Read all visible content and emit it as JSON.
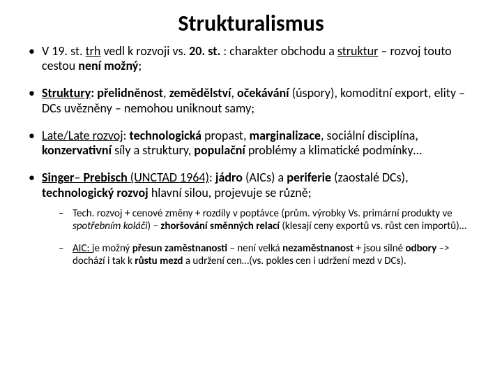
{
  "title": "Strukturalismus",
  "bullets": [
    {
      "pre": "V 19. st. ",
      "trh": "trh",
      "mid1": " vedl k rozvoji vs. ",
      "st20": "20. st. ",
      "mid2": ": charakter obchodu a ",
      "struk": "struktur",
      "dash": " – rozvoj touto cestou ",
      "neni": "není možný",
      "end": ";"
    },
    {
      "s1": "Struktury",
      "s2": ": přelidněnost",
      "s3": ", ",
      "s4": "zemědělství",
      "s5": ", ",
      "s6": "očekávání ",
      "s7": "(úspory), komoditní export,  elity – DCs uvězněny – nemohou uniknout samy;"
    },
    {
      "l1": "Late/Late rozvoj",
      "l2": ": ",
      "l3": "technologická ",
      "l4": "propast, ",
      "l5": "marginalizace",
      "l6": ", sociální disciplína, ",
      "l7": "konzervativní ",
      "l8": "síly a struktury, ",
      "l9": "populační ",
      "l10": "problémy a klimatické podmínky…"
    },
    {
      "p1": "Singer",
      "p2": "– ",
      "p3": "Prebisch ",
      "p4": "(UNCTAD 1964)",
      "p5": ": ",
      "p6": "jádro ",
      "p7": "(AICs) a ",
      "p8": "periferie ",
      "p9": "(zaostalé DCs), ",
      "p10": "technologický rozvoj ",
      "p11": "hlavní silou, projevuje se různě;"
    }
  ],
  "sub": [
    {
      "t1": "Tech. rozvoj + cenové změny + rozdíly v poptávce (prům. výrobky Vs. primární produkty ve ",
      "t2": "spotřebním koláči",
      "t3": ") – ",
      "t4": "zhoršování směnných relací ",
      "t5": "(klesají ceny exportů vs. růst cen importů)…"
    },
    {
      "a1": "AIC: ",
      "a2": "je možný ",
      "a3": "přesun zaměstnanosti ",
      "a4": "– není velká ",
      "a5": "nezaměstnanost ",
      "a6": "+ jsou silné ",
      "a7": "odbory ",
      "a8": "–> dochází i tak k ",
      "a9": "růstu mezd ",
      "a10": "a udržení cen…(vs. pokles cen i udržení mezd v DCs)."
    }
  ]
}
